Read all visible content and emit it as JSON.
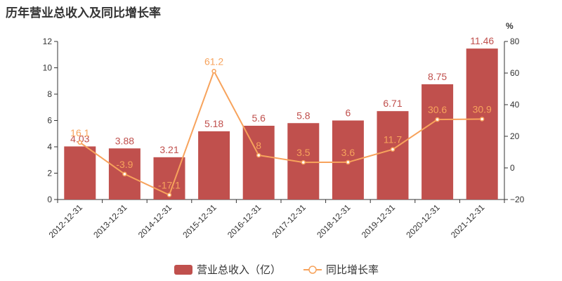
{
  "title": "历年营业总收入及同比增长率",
  "chart_data": {
    "type": "bar",
    "categories": [
      "2012-12-31",
      "2013-12-31",
      "2014-12-31",
      "2015-12-31",
      "2016-12-31",
      "2017-12-31",
      "2018-12-31",
      "2019-12-31",
      "2020-12-31",
      "2021-12-31"
    ],
    "series": [
      {
        "name": "营业总收入（亿）",
        "type": "bar",
        "axis": "left",
        "color": "#c0504d",
        "values": [
          4.03,
          3.88,
          3.21,
          5.18,
          5.6,
          5.8,
          6,
          6.71,
          8.75,
          11.46
        ],
        "labels": [
          "4.03",
          "3.88",
          "3.21",
          "5.18",
          "5.6",
          "5.8",
          "6",
          "6.71",
          "8.75",
          "11.46"
        ]
      },
      {
        "name": "同比增长率",
        "type": "line",
        "axis": "right",
        "color": "#f7a35c",
        "values": [
          16.1,
          -3.9,
          -17.1,
          61.2,
          8,
          3.5,
          3.6,
          11.7,
          30.6,
          30.9
        ],
        "labels": [
          "16.1",
          "-3.9",
          "-17.1",
          "61.2",
          "8",
          "3.5",
          "3.6",
          "11.7",
          "30.6",
          "30.9"
        ]
      }
    ],
    "y_left": {
      "min": 0,
      "max": 12,
      "ticks": [
        "0",
        "2",
        "4",
        "6",
        "8",
        "10",
        "12"
      ]
    },
    "y_right": {
      "min": -20,
      "max": 80,
      "unit": "%",
      "ticks": [
        "−20",
        "0",
        "20",
        "40",
        "60",
        "80"
      ]
    },
    "grid": false,
    "legend": "bottom-center"
  }
}
